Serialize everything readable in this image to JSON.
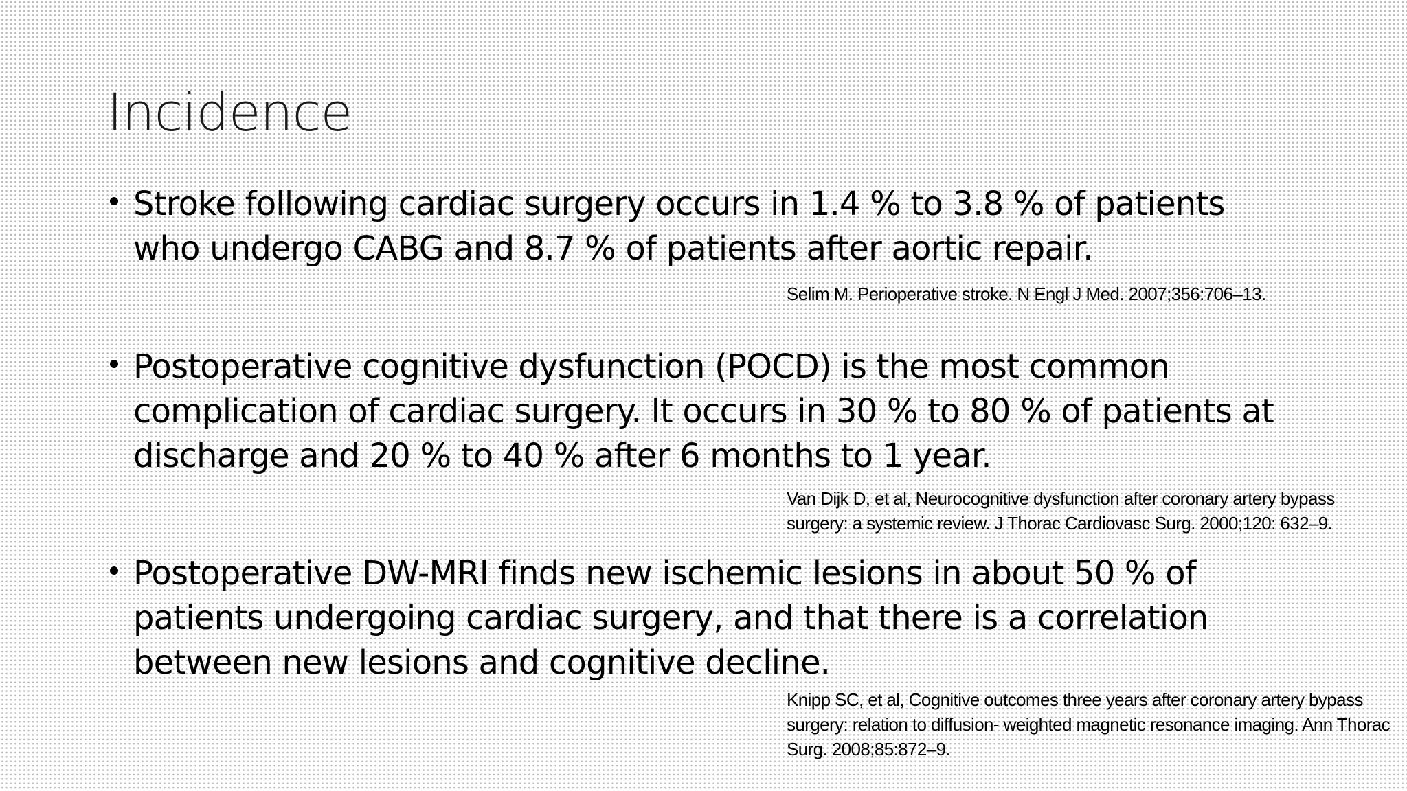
{
  "title": "Incidence",
  "bullets": [
    {
      "text": "Stroke following cardiac surgery occurs in 1.4 % to 3.8 % of patients who undergo CABG and 8.7 % of patients after aortic repair.",
      "citation": "Selim M. Perioperative stroke. N Engl J Med. 2007;356:706–13."
    },
    {
      "text": "Postoperative cognitive dysfunction (POCD) is the most common complication of cardiac surgery. It occurs in 30 % to 80 % of patients at discharge and 20 % to 40 % after 6 months to 1 year.",
      "citation": "Van Dijk D, et al, Neurocognitive dysfunction after coronary artery bypass surgery: a systemic review. J Thorac Cardiovasc Surg. 2000;120: 632–9."
    },
    {
      "text": "Postoperative DW-MRI finds new ischemic lesions in about 50 % of patients undergoing cardiac surgery, and that there is a correlation between new lesions and cognitive decline.",
      "citation": "Knipp SC, et al, Cognitive outcomes three years after coronary artery bypass surgery: relation to diffusion- weighted magnetic resonance imaging. Ann Thorac Surg. 2008;85:872–9."
    }
  ]
}
